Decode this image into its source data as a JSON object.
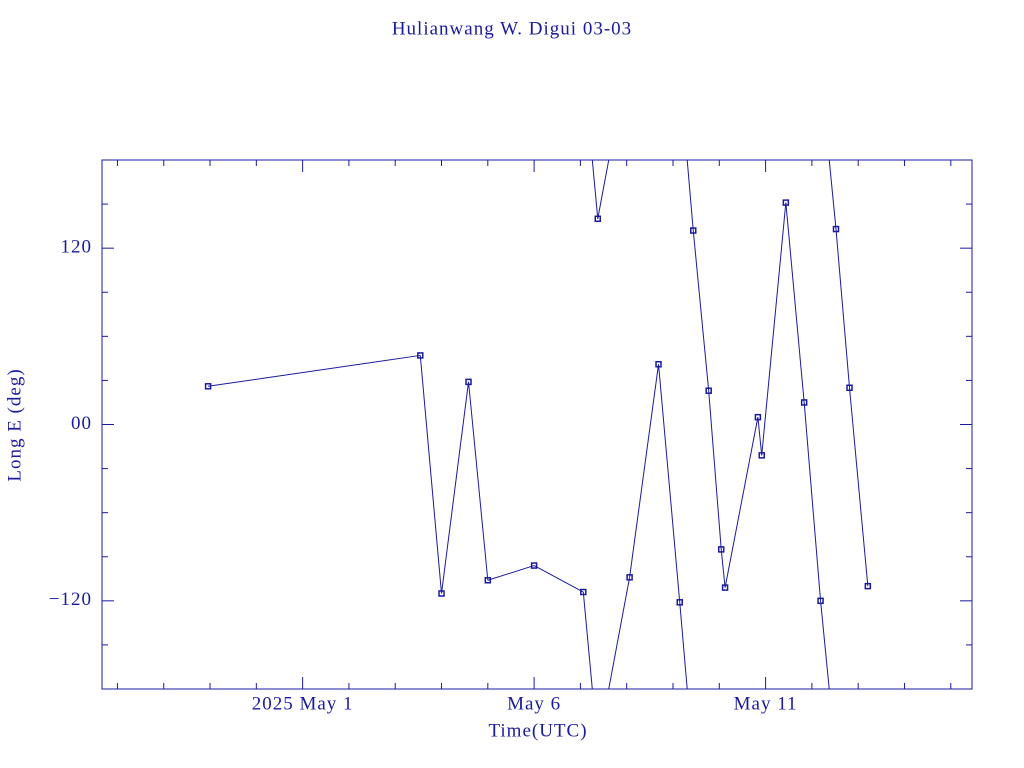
{
  "chart_data": {
    "type": "line",
    "title": "Hulianwang W. Digui 03-03",
    "xlabel": "Time(UTC)",
    "ylabel": "Long E (deg)",
    "color": "#1a1aa0",
    "wrap": true,
    "x": [
      "2025-04-28T23:00",
      "2025-05-03T13:00",
      "2025-05-04T00:00",
      "2025-05-04T14:00",
      "2025-05-05T00:00",
      "2025-05-06T00:00",
      "2025-05-07T01:30",
      "2025-05-07T09:00",
      "2025-05-08T01:30",
      "2025-05-08T16:30",
      "2025-05-09T03:30",
      "2025-05-09T10:30",
      "2025-05-09T18:30",
      "2025-05-10T01:00",
      "2025-05-10T03:00",
      "2025-05-10T20:00",
      "2025-05-10T22:00",
      "2025-05-11T10:30",
      "2025-05-11T20:00",
      "2025-05-12T04:30",
      "2025-05-12T12:30",
      "2025-05-12T19:30",
      "2025-05-13T05:00"
    ],
    "values": [
      26,
      47,
      -115,
      29,
      -106,
      -96,
      -114,
      140,
      -104,
      41,
      -121,
      132,
      23,
      -85,
      -111,
      5,
      -21,
      151,
      15,
      -120,
      133,
      25,
      -110
    ],
    "xlim": [
      "2025-04-26T16:00",
      "2025-05-15T11:00"
    ],
    "xticks": [
      {
        "value": "2025-05-01",
        "label": "2025 May  1"
      },
      {
        "value": "2025-05-06",
        "label": "May  6"
      },
      {
        "value": "2025-05-11",
        "label": "May 11"
      }
    ],
    "xminorticks": [
      "2025-04-27",
      "2025-04-28",
      "2025-04-29",
      "2025-04-30",
      "2025-05-02",
      "2025-05-03",
      "2025-05-04",
      "2025-05-05",
      "2025-05-07",
      "2025-05-08",
      "2025-05-09",
      "2025-05-10",
      "2025-05-12",
      "2025-05-13",
      "2025-05-14",
      "2025-05-15"
    ],
    "ylim": [
      -180,
      180
    ],
    "yticks": [
      {
        "value": -120,
        "label": "−120"
      },
      {
        "value": 0,
        "label": "00"
      },
      120
    ],
    "yminorticks": [
      -150,
      -90,
      -60,
      -30,
      30,
      60,
      90,
      150
    ]
  }
}
